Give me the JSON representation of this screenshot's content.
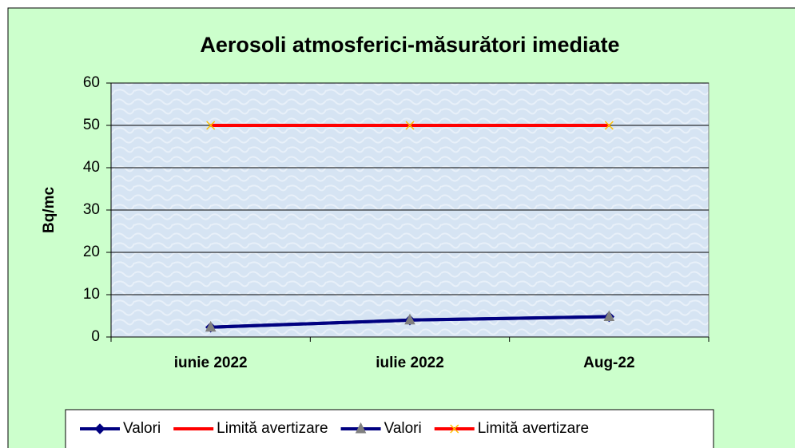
{
  "chart_data": {
    "type": "line",
    "title": "Aerosoli atmosferici-măsurători imediate",
    "y_label": "Bq/mc",
    "categories": [
      "iunie 2022",
      "iulie 2022",
      "Aug-22"
    ],
    "series": [
      {
        "name": "Valori",
        "color": "#000080",
        "marker": "diamond",
        "marker_color": "#000080",
        "values": [
          2.3,
          4,
          4.8
        ]
      },
      {
        "name": "Limită avertizare",
        "color": "#ff0000",
        "marker": "none",
        "marker_color": "#ff0000",
        "values": [
          50,
          50,
          50
        ]
      },
      {
        "name": "Valori",
        "color": "#000080",
        "marker": "triangle",
        "marker_color": "#808080",
        "values": [
          2.3,
          4,
          4.8
        ]
      },
      {
        "name": "Limită avertizare",
        "color": "#ff0000",
        "marker": "x",
        "marker_color": "#ffc000",
        "values": [
          50,
          50,
          50
        ]
      }
    ],
    "ylim": [
      0,
      60
    ],
    "yticks": [
      0,
      10,
      20,
      30,
      40,
      50,
      60
    ],
    "grid": true,
    "legend": "bottom"
  }
}
